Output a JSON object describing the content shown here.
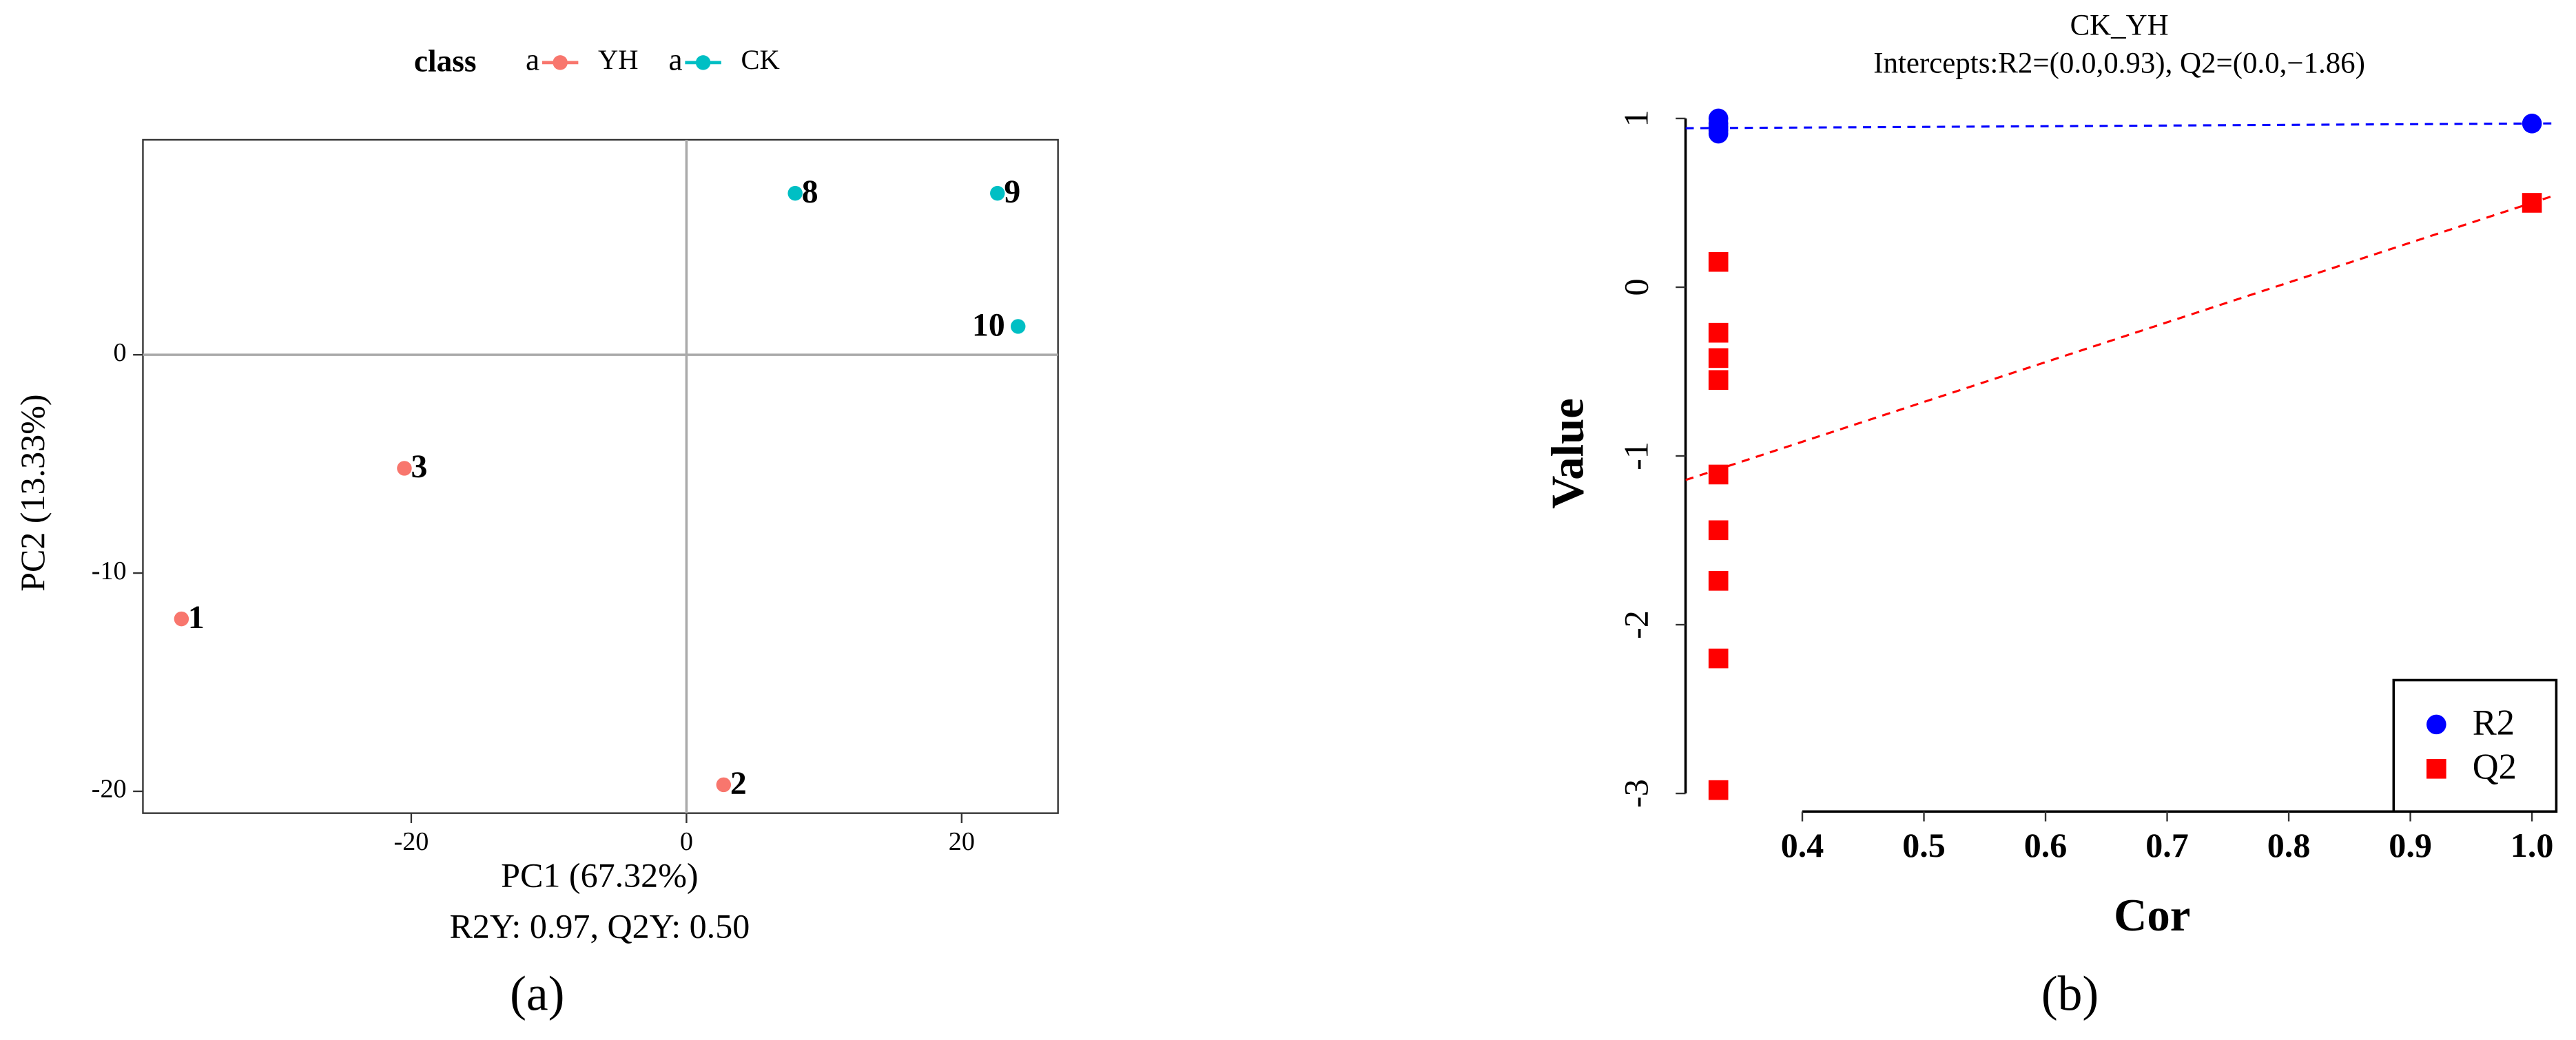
{
  "chart_data": [
    {
      "type": "scatter",
      "x_label": "PC1 (67.32%)",
      "y_label": "PC2 (13.33%)",
      "subtitle": "R2Y: 0.97, Q2Y: 0.50",
      "panel_label": "(a)",
      "legend_title": "class",
      "legend_key_label": "a",
      "legend": "top",
      "zero_lines": true,
      "xlim": [
        -39.5,
        27
      ],
      "ylim": [
        -21,
        9.85
      ],
      "xticks": [
        -20,
        0,
        20
      ],
      "yticks": [
        -20,
        -10,
        0
      ],
      "series": [
        {
          "name": "YH",
          "color": "#F8766D",
          "marker": "circle",
          "x": [
            -36.7,
            2.7,
            -20.5
          ],
          "values": [
            -12.1,
            -19.7,
            -5.2
          ],
          "point_labels": [
            "1",
            "2",
            "3"
          ]
        },
        {
          "name": "CK",
          "color": "#00BFC4",
          "marker": "circle",
          "x": [
            7.9,
            22.6,
            24.1
          ],
          "values": [
            7.4,
            7.4,
            1.3
          ],
          "point_labels": [
            "8",
            "9",
            "10"
          ]
        }
      ]
    },
    {
      "type": "scatter",
      "title": "CK_YH",
      "subtitle": "Intercepts:R2=(0.0,0.93), Q2=(0.0,−1.86)",
      "x_label": "Cor",
      "y_label": "Value",
      "panel_label": "(b)",
      "legend": "bottom right",
      "xlim": [
        0.304,
        1.02
      ],
      "ylim": [
        -3.107,
        1.146
      ],
      "xticks": [
        {
          "value": 0.4,
          "label": "0.4"
        },
        {
          "value": 0.5,
          "label": "0.5"
        },
        {
          "value": 0.6,
          "label": "0.6"
        },
        {
          "value": 0.7,
          "label": "0.7"
        },
        {
          "value": 0.8,
          "label": "0.8"
        },
        {
          "value": 0.9,
          "label": "0.9"
        },
        {
          "value": 1.0,
          "label": "1.0"
        }
      ],
      "yticks": [
        -3,
        -2,
        -1,
        0,
        1
      ],
      "series": [
        {
          "name": "R2",
          "color": "#0000FF",
          "marker": "circle",
          "x": [
            0.331,
            0.331,
            0.331,
            0.331,
            0.331,
            1.0
          ],
          "values": [
            1.0,
            0.97,
            0.95,
            0.93,
            0.91,
            0.97
          ]
        },
        {
          "name": "Q2",
          "color": "#FF0000",
          "marker": "square",
          "x": [
            0.331,
            0.331,
            0.331,
            0.331,
            0.331,
            0.331,
            0.331,
            0.331,
            0.331,
            1.0
          ],
          "values": [
            0.15,
            -0.27,
            -0.42,
            -0.55,
            -1.11,
            -1.44,
            -1.74,
            -2.2,
            -2.98,
            0.5
          ]
        }
      ],
      "fit_lines": [
        {
          "color": "#0000FF",
          "x": [
            0,
            1
          ],
          "values": [
            0.93,
            0.97
          ]
        },
        {
          "color": "#FF0000",
          "x": [
            0,
            1
          ],
          "values": [
            -1.86,
            0.5
          ]
        }
      ]
    }
  ]
}
